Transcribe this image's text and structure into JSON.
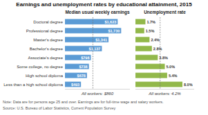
{
  "chart_data": [
    {
      "type": "bar",
      "orientation": "horizontal",
      "title": "Earnings and unemployment rates by educational attainment, 2015",
      "subtitle": "Median usual weekly earnings",
      "categories": [
        "Doctoral degree",
        "Professional degree",
        "Master's degree",
        "Bachelor's degree",
        "Associate's degree",
        "Some college, no degree",
        "High school diploma",
        "Less than a high school diploma"
      ],
      "values": [
        1623,
        1730,
        1341,
        1137,
        798,
        738,
        678,
        493
      ],
      "value_labels": [
        "$1,623",
        "$1,730",
        "$1,341",
        "$1,137",
        "$798",
        "$738",
        "$678",
        "$493"
      ],
      "color": "#5b9bd5",
      "xlim": [
        0,
        2000
      ],
      "data_labels": true,
      "tick_labels": "y",
      "annotations": [
        {
          "text": "All workers: $860",
          "value": 860
        },
        {
          "text": "Note: Data are for persons age 25 and over. Earnings are for full-time wage and salary workers."
        },
        {
          "text": "Source: U.S. Bureau of Labor Statistics, Current Population Survey"
        }
      ]
    },
    {
      "type": "bar",
      "orientation": "horizontal",
      "subtitle": "Unemployment rate",
      "values": [
        1.7,
        1.5,
        2.4,
        2.8,
        3.8,
        5.0,
        5.4,
        8.0
      ],
      "value_labels": [
        "1.7%",
        "1.5%",
        "2.4%",
        "2.8%",
        "3.8%",
        "5.0%",
        "5.4%",
        "8.0%"
      ],
      "color": "#92b84a",
      "xlim": [
        0,
        10
      ],
      "data_labels": true,
      "tick_labels": false,
      "annotations": [
        {
          "text": "All workers: 4.2%",
          "value": 4.2
        }
      ]
    }
  ]
}
